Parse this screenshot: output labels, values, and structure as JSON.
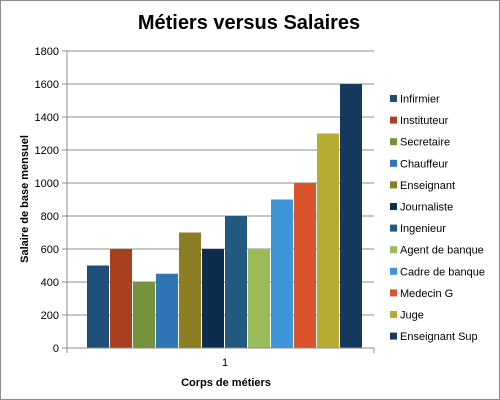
{
  "chart_data": {
    "type": "bar",
    "title": "Métiers versus Salaires",
    "xlabel": "Corps de métiers",
    "ylabel": "Salaire de base mensuel",
    "categories": [
      "1"
    ],
    "ylim": [
      0,
      1800
    ],
    "yticks": [
      0,
      200,
      400,
      600,
      800,
      1000,
      1200,
      1400,
      1600,
      1800
    ],
    "grid": true,
    "legend": "right",
    "series": [
      {
        "name": "Infirmier",
        "values": [
          500
        ],
        "color": "#1f4e79"
      },
      {
        "name": "Instituteur",
        "values": [
          600
        ],
        "color": "#a9401f"
      },
      {
        "name": "Secretaire",
        "values": [
          400
        ],
        "color": "#76923c"
      },
      {
        "name": "Chauffeur",
        "values": [
          450
        ],
        "color": "#2e75b6"
      },
      {
        "name": "Enseignant",
        "values": [
          700
        ],
        "color": "#8c7e22"
      },
      {
        "name": "Journaliste",
        "values": [
          600
        ],
        "color": "#0d2d4f"
      },
      {
        "name": "Ingenieur",
        "values": [
          800
        ],
        "color": "#215a7e"
      },
      {
        "name": "Agent de banque",
        "values": [
          600
        ],
        "color": "#9bbb59"
      },
      {
        "name": "Cadre de banque",
        "values": [
          900
        ],
        "color": "#3d94d6"
      },
      {
        "name": "Medecin G",
        "values": [
          1000
        ],
        "color": "#d9532b"
      },
      {
        "name": "Juge",
        "values": [
          1300
        ],
        "color": "#b8ad34"
      },
      {
        "name": "Enseignant Sup",
        "values": [
          1600
        ],
        "color": "#153a5e"
      }
    ]
  }
}
